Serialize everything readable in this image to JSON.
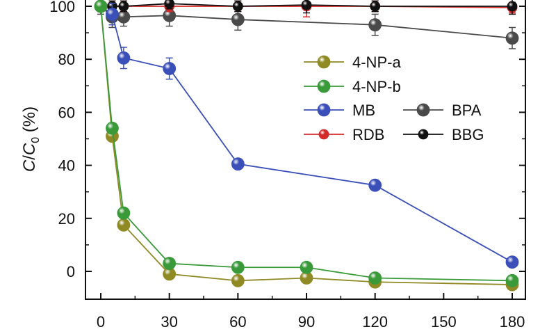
{
  "chart_data": {
    "type": "line",
    "title": "",
    "xlabel": "",
    "ylabel_parts": [
      "C",
      "/",
      "C",
      "0",
      " (%)"
    ],
    "xlim": [
      -5,
      185
    ],
    "ylim": [
      -10,
      100
    ],
    "xticks": [
      0,
      30,
      60,
      90,
      120,
      150,
      180
    ],
    "yticks": [
      0,
      20,
      40,
      60,
      80,
      100
    ],
    "legend_position": "center-right",
    "series": [
      {
        "name": "BPA",
        "color": "#4a4a4a",
        "x": [
          0,
          5,
          10,
          30,
          60,
          120,
          180
        ],
        "y": [
          100,
          96,
          96,
          96.5,
          95,
          93,
          88
        ],
        "err": [
          3,
          4,
          3.5,
          4,
          4,
          4,
          4
        ]
      },
      {
        "name": "RDB",
        "color": "#d42a2a",
        "x": [
          0,
          5,
          10,
          30,
          60,
          90,
          120,
          180
        ],
        "y": [
          100,
          100,
          100,
          100,
          100,
          100,
          100,
          99.5
        ],
        "err": [
          2,
          2,
          2,
          2,
          2,
          4,
          2,
          2
        ]
      },
      {
        "name": "BBG",
        "color": "#111111",
        "x": [
          0,
          5,
          10,
          30,
          60,
          90,
          120,
          180
        ],
        "y": [
          100,
          100,
          100,
          101,
          100,
          100.5,
          100,
          100
        ],
        "err": [
          2,
          2,
          2,
          2,
          2,
          3,
          2,
          3
        ]
      },
      {
        "name": "MB",
        "color": "#3b4fb8",
        "x": [
          0,
          5,
          10,
          30,
          60,
          120,
          180
        ],
        "y": [
          100,
          97,
          80.5,
          76.5,
          40.5,
          32.5,
          3.5
        ],
        "err": [
          2,
          4,
          4,
          4,
          1,
          1,
          1
        ]
      },
      {
        "name": "4-NP-a",
        "color": "#8f8a24",
        "x": [
          0,
          5,
          10,
          30,
          60,
          90,
          120,
          180
        ],
        "y": [
          100,
          51,
          17.5,
          -1,
          -3.5,
          -2.5,
          -4,
          -5
        ],
        "err": [
          0,
          0,
          0,
          0,
          0,
          0,
          0,
          0
        ]
      },
      {
        "name": "4-NP-b",
        "color": "#3a9a3a",
        "x": [
          0,
          5,
          10,
          30,
          60,
          90,
          120,
          180
        ],
        "y": [
          100,
          54,
          22,
          3,
          1.5,
          1.5,
          -2.5,
          -3.5
        ],
        "err": [
          0,
          0,
          0,
          0,
          0,
          0,
          0,
          0
        ]
      }
    ],
    "legend": [
      {
        "label": "4-NP-a",
        "series": 4
      },
      {
        "label": "4-NP-b",
        "series": 5
      },
      {
        "label": "MB",
        "series": 3
      },
      {
        "label": "BPA",
        "series": 0
      },
      {
        "label": "RDB",
        "series": 1
      },
      {
        "label": "BBG",
        "series": 2
      }
    ]
  }
}
